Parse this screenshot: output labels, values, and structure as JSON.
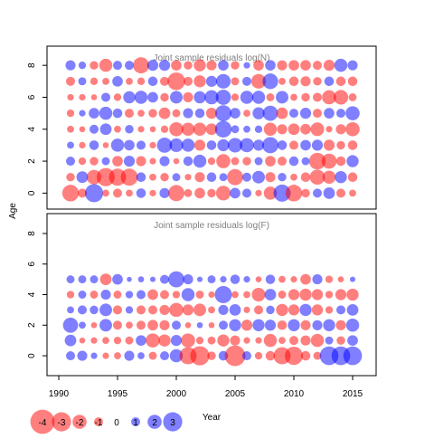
{
  "chart_data": {
    "type": "scatter",
    "ylabel": "Age",
    "xlabel": "Year",
    "colors": {
      "positive": "#0000ff",
      "negative": "#ff0000",
      "fill_alpha": 0.5
    },
    "x_ticks": [
      1990,
      1995,
      2000,
      2005,
      2010,
      2015
    ],
    "xlim": [
      1989,
      2017
    ],
    "years": [
      1991,
      1992,
      1993,
      1994,
      1995,
      1996,
      1997,
      1998,
      1999,
      2000,
      2001,
      2002,
      2003,
      2004,
      2005,
      2006,
      2007,
      2008,
      2009,
      2010,
      2011,
      2012,
      2013,
      2014,
      2015
    ],
    "legend": {
      "labels": [
        "-4",
        "-3",
        "-2",
        "-1",
        "0",
        "1",
        "2",
        "3"
      ],
      "values": [
        -4,
        -3,
        -2,
        -1,
        0,
        1,
        2,
        3
      ]
    },
    "panels": [
      {
        "title": "Joint sample residuals log(N)",
        "ylim": [
          -1,
          9.2
        ],
        "y_ticks": [
          0,
          2,
          4,
          6,
          8
        ],
        "ages": [
          0,
          1,
          2,
          3,
          4,
          5,
          6,
          7,
          8
        ],
        "residuals": [
          [
            -2.5,
            -1,
            2.8,
            -0.6,
            -1,
            -0.6,
            1.1,
            -0.5,
            1.2,
            -2.4,
            -0.8,
            -1.3,
            -0.9,
            -2.1,
            1.3,
            1.0,
            -0.5,
            -1.8,
            2.6,
            -2.5,
            -0.9,
            1.0,
            1.5,
            -1.0,
            -0.6
          ],
          [
            -0.9,
            1.5,
            -2.1,
            -2.8,
            -2.6,
            -2.6,
            1.1,
            -0.6,
            -0.9,
            0.8,
            -0.5,
            -1.2,
            1.1,
            0.8,
            -2.4,
            1.0,
            1.7,
            -1.2,
            0.9,
            -0.6,
            -1.1,
            -2.2,
            -1.8,
            1.6,
            -1.1
          ],
          [
            1.0,
            -0.7,
            -0.9,
            0.8,
            -1.3,
            1.4,
            -1.2,
            -0.5,
            1.2,
            -0.4,
            1.1,
            1.8,
            -0.7,
            -2.0,
            -0.8,
            -0.9,
            0.8,
            -1.3,
            -1.0,
            1.1,
            0.8,
            -2.5,
            -2.2,
            -1.1,
            1.6
          ],
          [
            0.6,
            -0.5,
            1.1,
            -0.4,
            1.8,
            1.3,
            1.0,
            -0.5,
            2.2,
            1.9,
            1.8,
            -1.4,
            1.1,
            1.6,
            2.1,
            2.0,
            1.4,
            2.4,
            1.1,
            -1.0,
            1.3,
            1.4,
            -1.4,
            -0.9,
            -1.1
          ],
          [
            -0.6,
            -0.4,
            1.0,
            1.5,
            -0.6,
            0.9,
            -0.5,
            -0.4,
            -0.7,
            -2.0,
            -1.8,
            -1.8,
            -1.5,
            2.5,
            0.8,
            0.6,
            0.7,
            -1.8,
            -1.2,
            -1.5,
            -1.3,
            -1.9,
            -0.5,
            -1.2,
            -2.0
          ],
          [
            -0.7,
            0.5,
            1.3,
            1.8,
            1.1,
            -1.0,
            -0.6,
            -0.9,
            -1.5,
            -0.8,
            1.2,
            1.1,
            -1.4,
            2.4,
            1.3,
            -0.6,
            1.6,
            2.2,
            -1.5,
            1.0,
            1.4,
            -1.0,
            1.3,
            1.0,
            2.0
          ],
          [
            -0.5,
            -0.5,
            -0.4,
            1.0,
            -0.7,
            1.6,
            1.8,
            1.3,
            -0.9,
            1.7,
            -1.2,
            1.6,
            2.0,
            2.2,
            -0.7,
            1.8,
            1.8,
            -0.8,
            1.7,
            -0.6,
            -0.9,
            -1.0,
            -2.0,
            -2.1,
            -0.8
          ],
          [
            -1.0,
            0.8,
            -0.7,
            -0.6,
            1.3,
            -0.6,
            -0.7,
            1.1,
            -1.0,
            -2.7,
            -1.0,
            -1.6,
            1.4,
            2.1,
            -0.8,
            1.0,
            -2.1,
            2.3,
            -0.6,
            -1.1,
            -1.2,
            -0.9,
            1.1,
            -1.1,
            -1.1
          ],
          [
            1.2,
            0.7,
            -0.9,
            -1.8,
            1.0,
            1.0,
            -2.4,
            1.4,
            1.4,
            -1.3,
            -0.9,
            -1.6,
            -1.2,
            1.3,
            -0.9,
            0.5,
            -1.3,
            1.3,
            -1.2,
            -1.3,
            -1.3,
            -1.0,
            -1.4,
            1.8,
            1.2
          ]
        ]
      },
      {
        "title": "Joint sample residuals log(F)",
        "ylim": [
          -1.3,
          9.3
        ],
        "y_ticks": [
          0,
          2,
          4,
          6,
          8
        ],
        "ages": [
          0,
          1,
          2,
          3,
          4,
          5
        ],
        "residuals": [
          [
            1.0,
            1.2,
            0.5,
            -0.5,
            -0.6,
            1.2,
            0.6,
            -0.8,
            1.0,
            1.8,
            -2.6,
            -3.0,
            -0.9,
            1.1,
            -3.3,
            1.0,
            -0.7,
            -1.1,
            -2.6,
            -2.8,
            -1.1,
            -0.8,
            2.9,
            2.9,
            2.9
          ],
          [
            1.5,
            -0.4,
            -0.5,
            -0.6,
            -0.7,
            -0.8,
            1.3,
            -2.0,
            -1.6,
            1.4,
            -2.0,
            -0.7,
            -0.8,
            -1.6,
            -1.2,
            -0.5,
            -0.5,
            -1.8,
            -0.6,
            -1.0,
            -1.2,
            -1.8,
            0.8,
            -0.9,
            1.3
          ],
          [
            2.2,
            0.6,
            -0.4,
            1.7,
            -1.0,
            -0.6,
            -1.0,
            -1.3,
            -1.2,
            1.0,
            -0.4,
            0.4,
            -0.4,
            1.0,
            1.6,
            -1.4,
            1.6,
            1.4,
            -1.1,
            1.6,
            -1.2,
            1.2,
            1.6,
            -1.2,
            1.8
          ],
          [
            0.6,
            1.0,
            0.9,
            1.7,
            -1.0,
            0.7,
            -1.0,
            -1.0,
            -1.2,
            -2.0,
            -1.4,
            -1.7,
            -0.6,
            1.2,
            1.5,
            -0.5,
            -1.0,
            0.9,
            -1.6,
            -1.4,
            1.6,
            -1.4,
            -0.7,
            1.0,
            1.5
          ],
          [
            -0.7,
            0.8,
            -0.8,
            1.2,
            -0.8,
            0.7,
            1.0,
            -1.3,
            -1.0,
            -0.7,
            1.8,
            -0.8,
            -0.5,
            2.6,
            -0.6,
            -0.6,
            -1.9,
            1.5,
            -0.8,
            -1.4,
            -1.6,
            -1.4,
            -0.7,
            -1.4,
            -1.6
          ],
          [
            0.8,
            0.8,
            0.8,
            -1.5,
            1.3,
            0.2,
            0.4,
            0.3,
            1.0,
            2.4,
            1.2,
            0.3,
            0.8,
            0.5,
            1.1,
            0.5,
            -0.4,
            1.1,
            -0.6,
            -0.5,
            -1.3,
            1.2,
            -0.7,
            -0.4,
            0.3
          ]
        ]
      }
    ]
  }
}
